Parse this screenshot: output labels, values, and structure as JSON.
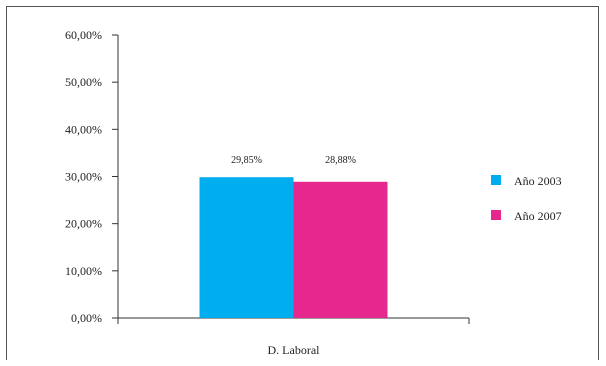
{
  "chart_data": {
    "type": "bar",
    "categories": [
      "D. Laboral"
    ],
    "series": [
      {
        "name": "Año 2003",
        "values": [
          29.85
        ],
        "color": "#00AEEF",
        "label": "29,85%"
      },
      {
        "name": "Año 2007",
        "values": [
          28.88
        ],
        "color": "#E6288E",
        "label": "28,88%"
      }
    ],
    "ylim": [
      0,
      60
    ],
    "yticks": [
      0,
      10,
      20,
      30,
      40,
      50,
      60
    ],
    "ytick_labels": [
      "0,00%",
      "10,00%",
      "20,00%",
      "30,00%",
      "40,00%",
      "50,00%",
      "60,00%"
    ],
    "legend_position": "right",
    "grid": false
  }
}
